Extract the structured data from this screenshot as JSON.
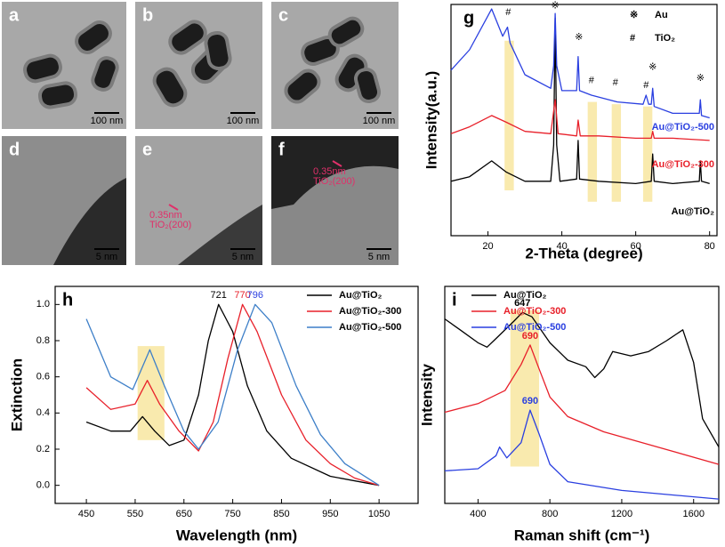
{
  "images": [
    {
      "label": "a",
      "scale_bar": "100 nm"
    },
    {
      "label": "b",
      "scale_bar": "100 nm"
    },
    {
      "label": "c",
      "scale_bar": "100 nm"
    },
    {
      "label": "d",
      "scale_bar": "5 nm"
    },
    {
      "label": "e",
      "scale_bar": "5 nm",
      "annotation": [
        "0.35nm",
        "TiO₂(200)"
      ]
    },
    {
      "label": "f",
      "scale_bar": "5 nm",
      "annotation": [
        "0.35nm",
        "TiO₂(200)"
      ]
    }
  ],
  "chart_data": [
    {
      "type": "line",
      "label": "g",
      "xlabel": "2-Theta (degree)",
      "ylabel": "Intensity(a.u.)",
      "xlim": [
        10,
        82
      ],
      "ylim": [
        0,
        10.2
      ],
      "xticks": [
        20,
        40,
        60,
        80
      ],
      "legend": [
        {
          "symbol": "※",
          "name": "Au"
        },
        {
          "symbol": "#",
          "name": "TiO₂"
        }
      ],
      "series": [
        {
          "name": "Au@TiO₂",
          "color": "#000000",
          "x": [
            10,
            15,
            21,
            25,
            30,
            37,
            37.8,
            38.2,
            38.6,
            39.5,
            44,
            44.4,
            44.8,
            50,
            60,
            64.2,
            64.6,
            65,
            70,
            77.2,
            77.5,
            77.8,
            80
          ],
          "values": [
            2.4,
            2.6,
            3.3,
            2.8,
            2.4,
            2.4,
            4,
            9.6,
            4,
            2.4,
            2.5,
            4.2,
            2.5,
            2.4,
            2.3,
            2.4,
            3.6,
            2.4,
            2.3,
            2.4,
            3.3,
            2.4,
            2.3
          ]
        },
        {
          "name": "Au@TiO₂-300",
          "color": "#e8202a",
          "x": [
            10,
            15,
            21,
            25,
            30,
            37,
            38.2,
            39,
            44,
            44.4,
            45,
            50,
            60,
            64.2,
            64.6,
            65,
            70,
            80
          ],
          "values": [
            4.5,
            4.8,
            5.3,
            5.0,
            4.6,
            4.5,
            6.0,
            4.5,
            4.4,
            5.1,
            4.4,
            4.4,
            4.3,
            4.3,
            4.6,
            4.3,
            4.3,
            4.2
          ]
        },
        {
          "name": "Au@TiO₂-500",
          "color": "#2a3fe0",
          "x": [
            10,
            15,
            21,
            24,
            25.3,
            26,
            30,
            37,
            37.8,
            38.2,
            38.6,
            40,
            44,
            44.4,
            44.8,
            48,
            55,
            62,
            62.8,
            63.5,
            64.2,
            64.6,
            65,
            70,
            77.2,
            77.5,
            77.8,
            80
          ],
          "values": [
            7.3,
            8.2,
            10.0,
            8.8,
            9.2,
            8.5,
            7.1,
            6.5,
            7.5,
            9.8,
            7.5,
            6.4,
            6.4,
            7.9,
            6.4,
            6.2,
            5.9,
            5.8,
            6.2,
            5.8,
            5.8,
            6.5,
            5.7,
            5.4,
            5.4,
            6.0,
            5.3,
            5.2
          ]
        }
      ],
      "highlights": [
        {
          "x": [
            24.5,
            27
          ],
          "y": [
            2.0,
            8.6
          ]
        },
        {
          "x": [
            47,
            49.5
          ],
          "y": [
            1.5,
            5.9
          ]
        },
        {
          "x": [
            53.5,
            56
          ],
          "y": [
            1.5,
            5.8
          ]
        },
        {
          "x": [
            62,
            64.5
          ],
          "y": [
            1.5,
            5.7
          ]
        }
      ],
      "markers": [
        {
          "symbol": "#",
          "x": 25.5,
          "y": 9.6
        },
        {
          "symbol": "※",
          "x": 38.2,
          "y": 9.9
        },
        {
          "symbol": "※",
          "x": 44.6,
          "y": 8.5
        },
        {
          "symbol": "#",
          "x": 48,
          "y": 6.6
        },
        {
          "symbol": "#",
          "x": 54.5,
          "y": 6.5
        },
        {
          "symbol": "#",
          "x": 62.8,
          "y": 6.4
        },
        {
          "symbol": "※",
          "x": 64.6,
          "y": 7.2
        },
        {
          "symbol": "※",
          "x": 77.5,
          "y": 6.7
        }
      ]
    },
    {
      "type": "line",
      "label": "h",
      "xlabel": "Wavelength (nm)",
      "ylabel": "Extinction",
      "xlim": [
        386,
        1130
      ],
      "ylim": [
        -0.1,
        1.1
      ],
      "xticks": [
        450,
        550,
        650,
        750,
        850,
        950,
        1050
      ],
      "yticks": [
        {
          "value": 0,
          "label": "0.0"
        },
        0.2,
        0.4,
        0.6,
        0.8,
        {
          "value": 1,
          "label": "1.0"
        }
      ],
      "series": [
        {
          "name": "Au@TiO₂",
          "color": "#000000",
          "x": [
            450,
            500,
            540,
            565,
            590,
            620,
            650,
            680,
            700,
            721,
            750,
            780,
            820,
            870,
            950,
            1050
          ],
          "values": [
            0.35,
            0.3,
            0.3,
            0.38,
            0.3,
            0.22,
            0.25,
            0.5,
            0.8,
            1.0,
            0.85,
            0.55,
            0.3,
            0.15,
            0.05,
            0
          ]
        },
        {
          "name": "Au@TiO₂-300",
          "color": "#e8202a",
          "x": [
            450,
            500,
            550,
            575,
            600,
            640,
            680,
            710,
            740,
            770,
            800,
            850,
            900,
            950,
            1000,
            1050
          ],
          "values": [
            0.54,
            0.42,
            0.45,
            0.58,
            0.45,
            0.3,
            0.19,
            0.35,
            0.7,
            1.0,
            0.85,
            0.5,
            0.25,
            0.12,
            0.04,
            0
          ]
        },
        {
          "name": "Au@TiO₂-500",
          "color": "#3d7fc8",
          "x": [
            450,
            500,
            545,
            580,
            610,
            650,
            680,
            720,
            760,
            796,
            830,
            880,
            930,
            980,
            1050
          ],
          "values": [
            0.92,
            0.6,
            0.53,
            0.75,
            0.55,
            0.3,
            0.2,
            0.35,
            0.75,
            1.0,
            0.9,
            0.55,
            0.28,
            0.12,
            0
          ]
        }
      ],
      "highlights": [
        {
          "x": [
            555,
            610
          ],
          "y": [
            0.25,
            0.77
          ]
        }
      ],
      "peaks": [
        {
          "x": 721,
          "y": 1.0,
          "color": "#000000"
        },
        {
          "x": 770,
          "y": 1.0,
          "color": "#e8202a"
        },
        {
          "x": 796,
          "y": 1.0,
          "color": "#2a3fe0"
        }
      ]
    },
    {
      "type": "line",
      "label": "i",
      "xlabel": "Raman shift (cm⁻¹)",
      "ylabel": "Intensity",
      "xlim": [
        215,
        1740
      ],
      "ylim": [
        0,
        10
      ],
      "xticks": [
        400,
        800,
        1200,
        1600
      ],
      "series": [
        {
          "name": "Au@TiO₂",
          "color": "#000000",
          "x": [
            215,
            300,
            400,
            450,
            500,
            600,
            647,
            700,
            800,
            900,
            1000,
            1050,
            1100,
            1150,
            1250,
            1350,
            1450,
            1540,
            1600,
            1650,
            1740
          ],
          "values": [
            8.5,
            8.0,
            7.4,
            7.2,
            7.6,
            8.4,
            8.8,
            8.6,
            7.4,
            6.6,
            6.3,
            5.8,
            6.2,
            7.0,
            6.8,
            7.0,
            7.5,
            8.0,
            6.5,
            3.9,
            2.6
          ]
        },
        {
          "name": "Au@TiO₂-300",
          "color": "#e8202a",
          "x": [
            215,
            400,
            550,
            640,
            690,
            740,
            800,
            900,
            1100,
            1400,
            1740
          ],
          "values": [
            4.2,
            4.6,
            5.2,
            6.4,
            7.3,
            6.2,
            4.9,
            4.0,
            3.3,
            2.6,
            1.8
          ]
        },
        {
          "name": "Au@TiO₂-500",
          "color": "#2a3fe0",
          "x": [
            215,
            400,
            500,
            520,
            560,
            640,
            690,
            740,
            800,
            900,
            1200,
            1740
          ],
          "values": [
            1.5,
            1.6,
            2.2,
            2.6,
            2.1,
            2.8,
            4.3,
            3.2,
            1.8,
            1.0,
            0.6,
            0.2
          ]
        }
      ],
      "highlights": [
        {
          "x": [
            580,
            740
          ],
          "y": [
            1.7,
            8.9
          ]
        }
      ],
      "peaks": [
        {
          "x": 647,
          "y": 8.8,
          "color": "#000000"
        },
        {
          "x": 690,
          "y": 7.3,
          "color": "#e8202a"
        },
        {
          "x": 690,
          "y": 4.3,
          "color": "#2a3fe0"
        }
      ]
    }
  ]
}
